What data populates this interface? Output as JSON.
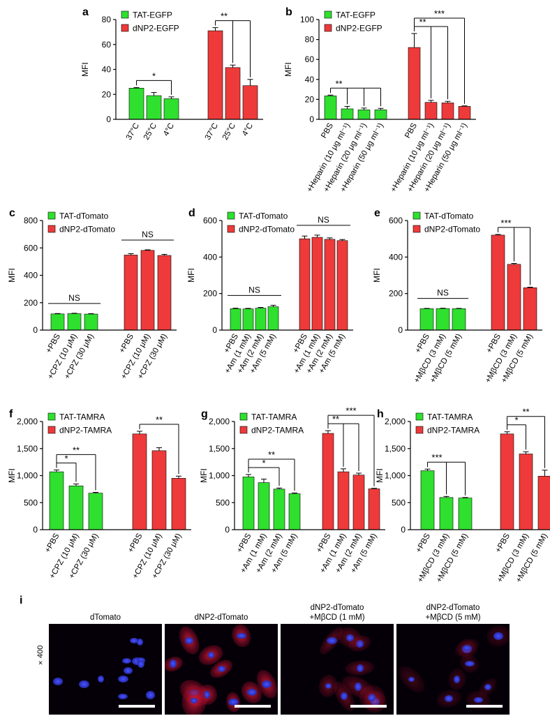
{
  "colors": {
    "green": "#2fe02f",
    "red": "#ee3a3a"
  },
  "panels": [
    {
      "letter": "a",
      "ylabel": "MFI",
      "yticks": [
        0,
        20,
        40,
        60,
        80
      ],
      "ylim": [
        0,
        80
      ],
      "legend": [
        "TAT-EGFP",
        "dNP2-EGFP"
      ],
      "groups": [
        {
          "series": "TAT-EGFP",
          "color": "green",
          "labels": [
            "37°C",
            "25°C",
            "4°C"
          ],
          "values": [
            25,
            19,
            16.5
          ],
          "errors": [
            0.5,
            2.5,
            1.5
          ]
        },
        {
          "series": "dNP2-EGFP",
          "color": "red",
          "labels": [
            "37°C",
            "25°C",
            "4°C"
          ],
          "values": [
            71,
            41.5,
            27
          ],
          "errors": [
            2.5,
            2,
            5
          ]
        }
      ],
      "sig": [
        {
          "group": 0,
          "from": 0,
          "to": [
            2
          ],
          "label": "*"
        },
        {
          "group": 1,
          "from": 0,
          "to": [
            1,
            2
          ],
          "label": "**"
        }
      ]
    },
    {
      "letter": "b",
      "ylabel": "MFI",
      "yticks": [
        0,
        20,
        40,
        60,
        80,
        100
      ],
      "ylim": [
        0,
        100
      ],
      "legend": [
        "TAT-EGFP",
        "dNP2-EGFP"
      ],
      "groups": [
        {
          "series": "TAT-EGFP",
          "color": "green",
          "labels": [
            "PBS",
            "+Heparin (10 μg ml⁻¹)",
            "+Heparin (20 μg ml⁻¹)",
            "+Heparin (50 μg ml⁻¹)"
          ],
          "values": [
            23.5,
            10.5,
            9.5,
            9.5
          ],
          "errors": [
            0.8,
            2.5,
            1.8,
            1.5
          ]
        },
        {
          "series": "dNP2-EGFP",
          "color": "red",
          "labels": [
            "PBS",
            "+Heparin (10 μg ml⁻¹)",
            "+Heparin (20 μg ml⁻¹)",
            "+Heparin (50 μg ml⁻¹)"
          ],
          "values": [
            72,
            17,
            16.5,
            13
          ],
          "errors": [
            14,
            2,
            1.5,
            0.5
          ]
        }
      ],
      "sig": [
        {
          "group": 0,
          "from": 0,
          "to": [
            1,
            2,
            3
          ],
          "label": "**"
        },
        {
          "group": 1,
          "from": 0,
          "to": [
            1,
            2
          ],
          "label": "**"
        },
        {
          "group": 1,
          "from": 0,
          "to": [
            3
          ],
          "label": "***"
        }
      ]
    },
    {
      "letter": "c",
      "ylabel": "MFI",
      "yticks": [
        0,
        200,
        400,
        600,
        800
      ],
      "ylim": [
        0,
        800
      ],
      "legend": [
        "TAT-dTomato",
        "dNP2-dTomato"
      ],
      "groups": [
        {
          "series": "TAT-dTomato",
          "color": "green",
          "labels": [
            "+PBS",
            "+CPZ (10 μM)",
            "+CPZ (30 μM)"
          ],
          "values": [
            118,
            120,
            117
          ],
          "errors": [
            3,
            3,
            3
          ]
        },
        {
          "series": "dNP2-dTomato",
          "color": "red",
          "labels": [
            "+PBS",
            "+CPZ (10 μM)",
            "+CPZ (30 μM)"
          ],
          "values": [
            548,
            582,
            545
          ],
          "errors": [
            10,
            4,
            8
          ]
        }
      ],
      "ns": [
        {
          "group": 0,
          "label": "NS"
        },
        {
          "group": 1,
          "label": "NS"
        }
      ]
    },
    {
      "letter": "d",
      "ylabel": "MFI",
      "yticks": [
        0,
        200,
        400,
        600
      ],
      "ylim": [
        0,
        600
      ],
      "legend": [
        "TAT-dTomato",
        "dNP2-dTomato"
      ],
      "groups": [
        {
          "series": "TAT-dTomato",
          "color": "green",
          "labels": [
            "+PBS",
            "+Am (1 mM)",
            "+Am (2 mM)",
            "+Am (5 mM)"
          ],
          "values": [
            117,
            116,
            120,
            128
          ],
          "errors": [
            3,
            3,
            4,
            8
          ]
        },
        {
          "series": "dNP2-dTomato",
          "color": "red",
          "labels": [
            "+PBS",
            "+Am (1 mM)",
            "+Am (2 mM)",
            "+Am (5 mM)"
          ],
          "values": [
            500,
            508,
            497,
            490
          ],
          "errors": [
            15,
            12,
            8,
            6
          ]
        }
      ],
      "ns": [
        {
          "group": 0,
          "label": "NS"
        },
        {
          "group": 1,
          "label": "NS"
        }
      ]
    },
    {
      "letter": "e",
      "ylabel": "MFI",
      "yticks": [
        0,
        200,
        400,
        600
      ],
      "ylim": [
        0,
        600
      ],
      "legend": [
        "TAT-dTomato",
        "dNP2-dTomato"
      ],
      "groups": [
        {
          "series": "TAT-dTomato",
          "color": "green",
          "labels": [
            "+PBS",
            "+MβCD (3 mM)",
            "+MβCD (5 mM)"
          ],
          "values": [
            117,
            118,
            117
          ],
          "errors": [
            2,
            2,
            2
          ]
        },
        {
          "series": "dNP2-dTomato",
          "color": "red",
          "labels": [
            "+PBS",
            "+MβCD (3 mM)",
            "+MβCD (5 mM)"
          ],
          "values": [
            520,
            360,
            232
          ],
          "errors": [
            4,
            5,
            3
          ]
        }
      ],
      "ns": [
        {
          "group": 0,
          "label": "NS"
        }
      ],
      "sig": [
        {
          "group": 1,
          "from": 0,
          "to": [
            1,
            2
          ],
          "label": "***"
        }
      ]
    },
    {
      "letter": "f",
      "ylabel": "MFI",
      "yticks": [
        0,
        500,
        1000,
        1500,
        2000
      ],
      "yticklabels": [
        "0",
        "500",
        "1,000",
        "1,500",
        "2,000"
      ],
      "ylim": [
        0,
        2000
      ],
      "legend": [
        "TAT-TAMRA",
        "dNP2-TAMRA"
      ],
      "groups": [
        {
          "series": "TAT-TAMRA",
          "color": "green",
          "labels": [
            "+PBS",
            "+CPZ (10 μM)",
            "+CPZ (30 μM)"
          ],
          "values": [
            1070,
            810,
            675
          ],
          "errors": [
            35,
            35,
            15
          ]
        },
        {
          "series": "dNP2-TAMRA",
          "color": "red",
          "labels": [
            "+PBS",
            "+CPZ (10 μM)",
            "+CPZ (30 μM)"
          ],
          "values": [
            1770,
            1460,
            950
          ],
          "errors": [
            50,
            55,
            40
          ]
        }
      ],
      "sig": [
        {
          "group": 0,
          "from": 0,
          "to": [
            1
          ],
          "label": "*"
        },
        {
          "group": 0,
          "from": 0,
          "to": [
            2
          ],
          "label": "**"
        },
        {
          "group": 1,
          "from": 0,
          "to": [
            2
          ],
          "label": "**"
        }
      ]
    },
    {
      "letter": "g",
      "ylabel": "MFI",
      "yticks": [
        0,
        500,
        1000,
        1500,
        2000
      ],
      "yticklabels": [
        "0",
        "500",
        "1,000",
        "1,500",
        "2,000"
      ],
      "ylim": [
        0,
        2000
      ],
      "legend": [
        "TAT-TAMRA",
        "dNP2-TAMRA"
      ],
      "groups": [
        {
          "series": "TAT-TAMRA",
          "color": "green",
          "labels": [
            "+PBS",
            "+Am (1 mM)",
            "+Am (2 mM)",
            "+Am (5 mM)"
          ],
          "values": [
            975,
            870,
            750,
            665
          ],
          "errors": [
            45,
            65,
            20,
            15
          ]
        },
        {
          "series": "dNP2-TAMRA",
          "color": "red",
          "labels": [
            "+PBS",
            "+Am (1 mM)",
            "+Am (2 mM)",
            "+Am (5 mM)"
          ],
          "values": [
            1780,
            1070,
            1010,
            755
          ],
          "errors": [
            50,
            55,
            35,
            10
          ]
        }
      ],
      "sig": [
        {
          "group": 0,
          "from": 0,
          "to": [
            2
          ],
          "label": "*"
        },
        {
          "group": 0,
          "from": 0,
          "to": [
            3
          ],
          "label": "**"
        },
        {
          "group": 1,
          "from": 0,
          "to": [
            1,
            2
          ],
          "label": "**"
        },
        {
          "group": 1,
          "from": 0,
          "to": [
            3
          ],
          "label": "***"
        }
      ]
    },
    {
      "letter": "h",
      "ylabel": "MFI",
      "yticks": [
        0,
        500,
        1000,
        1500,
        2000
      ],
      "yticklabels": [
        "0",
        "500",
        "1,000",
        "1,500",
        "2,000"
      ],
      "ylim": [
        0,
        2000
      ],
      "legend": [
        "TAT-TAMRA",
        "dNP2-TAMRA"
      ],
      "groups": [
        {
          "series": "TAT-TAMRA",
          "color": "green",
          "labels": [
            "+PBS",
            "+MβCD (3 mM)",
            "+MβCD (5 mM)"
          ],
          "values": [
            1090,
            595,
            585
          ],
          "errors": [
            30,
            20,
            10
          ]
        },
        {
          "series": "dNP2-TAMRA",
          "color": "red",
          "labels": [
            "+PBS",
            "+MβCD (3 mM)",
            "+MβCD (5 mM)"
          ],
          "values": [
            1770,
            1400,
            990
          ],
          "errors": [
            40,
            40,
            110
          ]
        }
      ],
      "sig": [
        {
          "group": 0,
          "from": 0,
          "to": [
            1,
            2
          ],
          "label": "***"
        },
        {
          "group": 1,
          "from": 0,
          "to": [
            1
          ],
          "label": "*"
        },
        {
          "group": 1,
          "from": 0,
          "to": [
            2
          ],
          "label": "**"
        }
      ]
    }
  ],
  "micrographs": {
    "letter": "i",
    "magnification": "×400",
    "titles": [
      "dTomato",
      "dNP2-dTomato",
      "dNP2-dTomato\n+MβCD (1 mM)",
      "dNP2-dTomato\n+MβCD (5 mM)"
    ]
  }
}
